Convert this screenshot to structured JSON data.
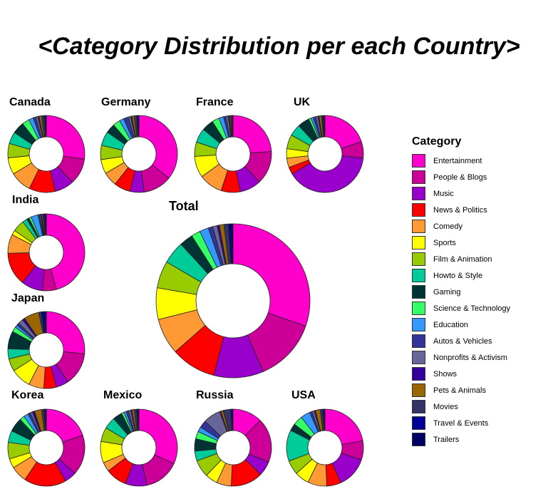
{
  "chart_data": {
    "type": "pie",
    "title": "<Category Distribution per each Country>",
    "legend_title": "Category",
    "legend_position": "right",
    "donut": true,
    "categories": [
      "Entertainment",
      "People & Blogs",
      "Music",
      "News & Politics",
      "Comedy",
      "Sports",
      "Film & Animation",
      "Howto & Style",
      "Gaming",
      "Science & Technology",
      "Education",
      "Autos & Vehicles",
      "Nonprofits & Activism",
      "Shows",
      "Pets & Animals",
      "Movies",
      "Travel & Events",
      "Trailers"
    ],
    "colors": [
      "#ff00cc",
      "#cc0099",
      "#9900cc",
      "#ff0000",
      "#ff9933",
      "#ffff00",
      "#99cc00",
      "#00cc99",
      "#003333",
      "#33ff66",
      "#3399ff",
      "#333399",
      "#666699",
      "#330099",
      "#996600",
      "#333366",
      "#000099",
      "#000066"
    ],
    "series": [
      {
        "name": "Canada",
        "values": [
          27,
          11,
          8,
          11,
          9,
          7,
          6,
          5,
          5,
          3,
          2,
          1,
          1,
          0.5,
          1,
          1,
          0.5,
          0.5
        ]
      },
      {
        "name": "Germany",
        "values": [
          36,
          12,
          6,
          7,
          6,
          6,
          6,
          6,
          4,
          3,
          2,
          2,
          1,
          0.5,
          1,
          1,
          0.5,
          0.5
        ]
      },
      {
        "name": "France",
        "values": [
          24,
          14,
          9,
          8,
          10,
          9,
          6,
          6,
          5,
          3,
          2,
          1,
          1,
          0.5,
          0.5,
          0.5,
          0.3,
          0.2
        ]
      },
      {
        "name": "UK",
        "values": [
          20,
          7,
          40,
          3,
          4,
          4,
          6,
          5,
          5,
          1,
          1,
          1,
          1,
          0.5,
          1,
          0.5,
          0.5,
          0.5
        ]
      },
      {
        "name": "India",
        "values": [
          46,
          6,
          9,
          14,
          8,
          2,
          5,
          2,
          1,
          1,
          3,
          0.5,
          0.5,
          0.5,
          0.5,
          0.5,
          0.5,
          0.5
        ]
      },
      {
        "name": "Japan",
        "values": [
          25,
          13,
          5,
          5,
          6,
          8,
          5,
          4,
          7,
          2,
          1,
          1,
          2,
          1,
          6,
          1,
          1,
          1
        ]
      },
      {
        "name": "Korea",
        "values": [
          20,
          17,
          5,
          18,
          7,
          4,
          7,
          5,
          6,
          2,
          2,
          1,
          1,
          1,
          3,
          1,
          0.5,
          0.5
        ]
      },
      {
        "name": "Mexico",
        "values": [
          32,
          15,
          9,
          9,
          4,
          9,
          6,
          5,
          4,
          1,
          1,
          1,
          1,
          0.5,
          1,
          1,
          0.5,
          0.5
        ]
      },
      {
        "name": "Russia",
        "values": [
          12,
          18,
          6,
          13,
          6,
          5,
          7,
          4,
          5,
          3,
          2,
          3,
          7,
          0.5,
          1,
          3,
          0.5,
          0.5
        ]
      },
      {
        "name": "USA",
        "values": [
          22,
          8,
          13,
          6,
          8,
          6,
          6,
          13,
          3,
          4,
          4,
          1,
          1,
          0.5,
          2,
          1,
          0.5,
          0.5
        ]
      },
      {
        "name": "Total",
        "values": [
          32,
          14,
          11,
          10,
          8,
          7,
          6,
          5,
          3,
          2,
          2,
          1,
          1,
          0.5,
          1,
          1,
          0.5,
          0.5
        ]
      }
    ]
  }
}
